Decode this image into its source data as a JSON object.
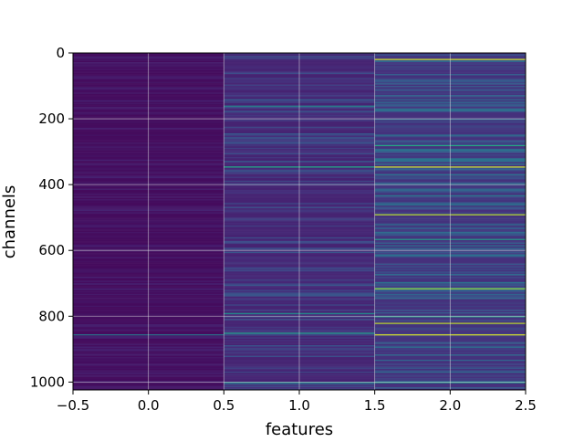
{
  "chart_data": {
    "type": "heatmap",
    "xlabel": "features",
    "ylabel": "channels",
    "xlim": [
      -0.5,
      2.5
    ],
    "ylim": [
      1024,
      0
    ],
    "x_ticks": [
      "−0.5",
      "0.0",
      "0.5",
      "1.0",
      "1.5",
      "2.0",
      "2.5"
    ],
    "x_tick_values": [
      -0.5,
      0.0,
      0.5,
      1.0,
      1.5,
      2.0,
      2.5
    ],
    "y_ticks": [
      "0",
      "200",
      "400",
      "600",
      "800",
      "1000"
    ],
    "y_tick_values": [
      0,
      200,
      400,
      600,
      800,
      1000
    ],
    "columns": 3,
    "rows": 1024,
    "colormap": "viridis",
    "grid": true,
    "value_range": [
      0,
      1
    ],
    "highlights": [
      {
        "column": 1,
        "channel": 345,
        "value": 0.6
      },
      {
        "column": 1,
        "channel": 160,
        "value": 0.45
      },
      {
        "column": 1,
        "channel": 790,
        "value": 0.5
      },
      {
        "column": 1,
        "channel": 850,
        "value": 0.55
      },
      {
        "column": 1,
        "channel": 1000,
        "value": 0.5
      },
      {
        "column": 2,
        "channel": 18,
        "value": 0.95
      },
      {
        "column": 2,
        "channel": 280,
        "value": 0.6
      },
      {
        "column": 2,
        "channel": 345,
        "value": 0.95
      },
      {
        "column": 2,
        "channel": 490,
        "value": 0.9
      },
      {
        "column": 2,
        "channel": 565,
        "value": 0.55
      },
      {
        "column": 2,
        "channel": 715,
        "value": 0.85
      },
      {
        "column": 2,
        "channel": 800,
        "value": 0.55
      },
      {
        "column": 2,
        "channel": 820,
        "value": 0.9
      },
      {
        "column": 2,
        "channel": 855,
        "value": 0.95
      },
      {
        "column": 2,
        "channel": 1000,
        "value": 0.55
      },
      {
        "column": 0,
        "channel": 855,
        "value": 0.4
      }
    ]
  }
}
